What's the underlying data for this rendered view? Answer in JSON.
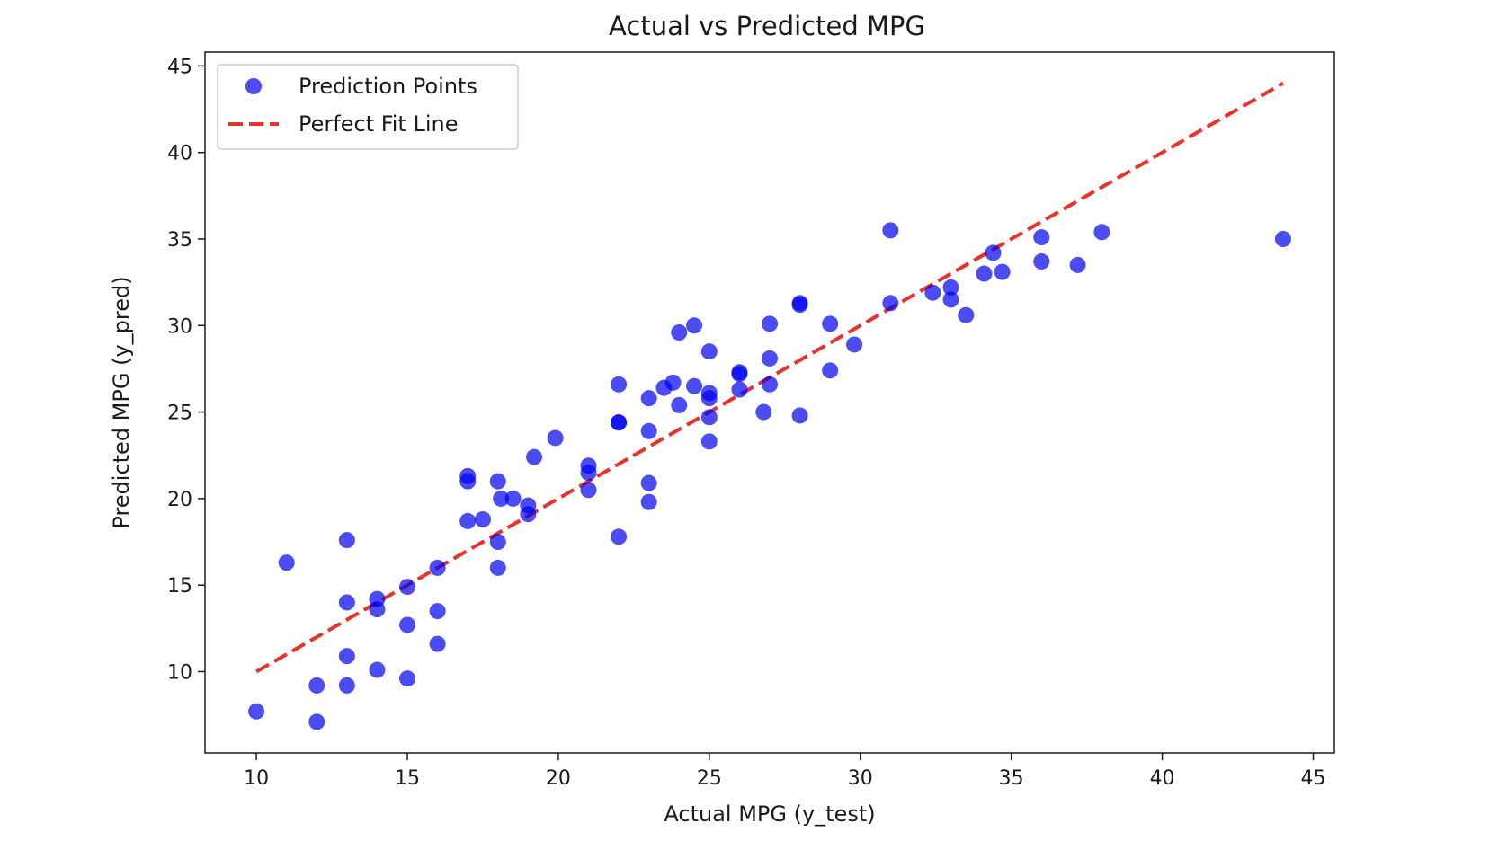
{
  "chart_data": {
    "type": "scatter",
    "title": "Actual vs Predicted MPG",
    "xlabel": "Actual MPG (y_test)",
    "ylabel": "Predicted MPG (y_pred)",
    "xlim": [
      8.3,
      45.7
    ],
    "ylim": [
      5.3,
      45.8
    ],
    "xticks": [
      10,
      15,
      20,
      25,
      30,
      35,
      40,
      45
    ],
    "yticks": [
      10,
      15,
      20,
      25,
      30,
      35,
      40,
      45
    ],
    "grid": false,
    "legend_position": "upper-left",
    "series": [
      {
        "name": "Prediction Points",
        "kind": "scatter",
        "color": "#0000ee",
        "points": [
          [
            10,
            7.7
          ],
          [
            11,
            16.3
          ],
          [
            12,
            9.2
          ],
          [
            12,
            7.1
          ],
          [
            13,
            17.6
          ],
          [
            13,
            14.0
          ],
          [
            13,
            10.9
          ],
          [
            13,
            9.2
          ],
          [
            14,
            14.2
          ],
          [
            14,
            13.6
          ],
          [
            14,
            10.1
          ],
          [
            15,
            14.9
          ],
          [
            15,
            12.7
          ],
          [
            15,
            9.6
          ],
          [
            16,
            16.0
          ],
          [
            16,
            13.5
          ],
          [
            16,
            11.6
          ],
          [
            17,
            21.3
          ],
          [
            17,
            21.0
          ],
          [
            17,
            18.7
          ],
          [
            17.5,
            18.8
          ],
          [
            18,
            21.0
          ],
          [
            18,
            17.5
          ],
          [
            18,
            16.0
          ],
          [
            18.1,
            20.0
          ],
          [
            18.5,
            20.0
          ],
          [
            19,
            19.6
          ],
          [
            19,
            19.1
          ],
          [
            19.2,
            22.4
          ],
          [
            19.9,
            23.5
          ],
          [
            21,
            21.9
          ],
          [
            21,
            21.5
          ],
          [
            21,
            20.5
          ],
          [
            22,
            26.6
          ],
          [
            22,
            24.4
          ],
          [
            22,
            24.4
          ],
          [
            22,
            17.8
          ],
          [
            23,
            25.8
          ],
          [
            23,
            23.9
          ],
          [
            23,
            20.9
          ],
          [
            23,
            19.8
          ],
          [
            23.5,
            26.4
          ],
          [
            23.8,
            26.7
          ],
          [
            24,
            29.6
          ],
          [
            24,
            25.4
          ],
          [
            24.5,
            30.0
          ],
          [
            24.5,
            26.5
          ],
          [
            25,
            28.5
          ],
          [
            25,
            26.1
          ],
          [
            25,
            25.8
          ],
          [
            25,
            24.7
          ],
          [
            25,
            23.3
          ],
          [
            26,
            27.3
          ],
          [
            26,
            27.2
          ],
          [
            26,
            26.3
          ],
          [
            26.8,
            25.0
          ],
          [
            27,
            30.1
          ],
          [
            27,
            28.1
          ],
          [
            27,
            26.6
          ],
          [
            28,
            31.3
          ],
          [
            28,
            31.2
          ],
          [
            28,
            24.8
          ],
          [
            29,
            30.1
          ],
          [
            29,
            27.4
          ],
          [
            29.8,
            28.9
          ],
          [
            31,
            35.5
          ],
          [
            31,
            31.3
          ],
          [
            32.4,
            31.9
          ],
          [
            33,
            32.2
          ],
          [
            33,
            31.5
          ],
          [
            33.5,
            30.6
          ],
          [
            34.1,
            33.0
          ],
          [
            34.4,
            34.2
          ],
          [
            34.7,
            33.1
          ],
          [
            36,
            35.1
          ],
          [
            36,
            33.7
          ],
          [
            37.2,
            33.5
          ],
          [
            38,
            35.4
          ],
          [
            44,
            35.0
          ]
        ]
      },
      {
        "name": "Perfect Fit Line",
        "kind": "line",
        "style": "dashed",
        "color": "#e8322a",
        "points": [
          [
            10,
            10
          ],
          [
            44,
            44
          ]
        ]
      }
    ]
  }
}
